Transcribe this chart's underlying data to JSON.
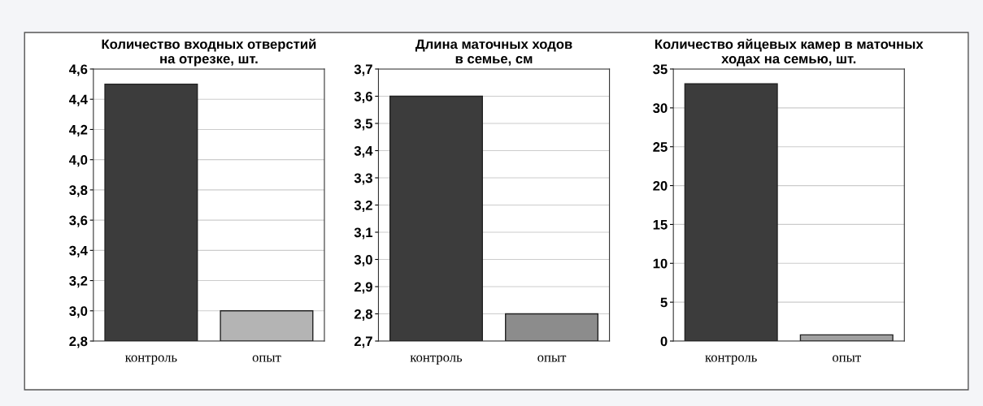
{
  "chart_data": [
    {
      "type": "bar",
      "title": "Количество входных отверстий\nна отрезке, шт.",
      "categories": [
        "контроль",
        "опыт"
      ],
      "values": [
        4.5,
        3.0
      ],
      "colors": [
        "#3c3c3c",
        "#b4b4b4"
      ],
      "ylim": [
        2.8,
        4.6
      ],
      "yticks": [
        {
          "value": 2.8,
          "label": "2,8"
        },
        {
          "value": 3.0,
          "label": "3,0"
        },
        {
          "value": 3.2,
          "label": "3,2"
        },
        {
          "value": 3.4,
          "label": "3,4"
        },
        {
          "value": 3.6,
          "label": "3,6"
        },
        {
          "value": 3.8,
          "label": "3,8"
        },
        {
          "value": 4.0,
          "label": "4,0"
        },
        {
          "value": 4.2,
          "label": "4,2"
        },
        {
          "value": 4.4,
          "label": "4,4"
        },
        {
          "value": 4.6,
          "label": "4,6"
        }
      ],
      "grid": "y"
    },
    {
      "type": "bar",
      "title": "Длина маточных ходов\nв семье, см",
      "categories": [
        "контроль",
        "опыт"
      ],
      "values": [
        3.6,
        2.8
      ],
      "colors": [
        "#3c3c3c",
        "#8c8c8c"
      ],
      "ylim": [
        2.7,
        3.7
      ],
      "yticks": [
        {
          "value": 2.7,
          "label": "2,7"
        },
        {
          "value": 2.8,
          "label": "2,8"
        },
        {
          "value": 2.9,
          "label": "2,9"
        },
        {
          "value": 3.0,
          "label": "3,0"
        },
        {
          "value": 3.1,
          "label": "3,1"
        },
        {
          "value": 3.2,
          "label": "3,2"
        },
        {
          "value": 3.3,
          "label": "3,3"
        },
        {
          "value": 3.4,
          "label": "3,4"
        },
        {
          "value": 3.5,
          "label": "3,5"
        },
        {
          "value": 3.6,
          "label": "3,6"
        },
        {
          "value": 3.7,
          "label": "3,7"
        }
      ],
      "grid": "y"
    },
    {
      "type": "bar",
      "title": "Количество яйцевых камер в маточных\nходах на семью, шт.",
      "categories": [
        "контроль",
        "опыт"
      ],
      "values": [
        33.1,
        0.8
      ],
      "colors": [
        "#3c3c3c",
        "#a0a0a0"
      ],
      "ylim": [
        0,
        35
      ],
      "yticks": [
        0,
        5,
        10,
        15,
        20,
        25,
        30,
        35
      ],
      "grid": "y"
    }
  ]
}
